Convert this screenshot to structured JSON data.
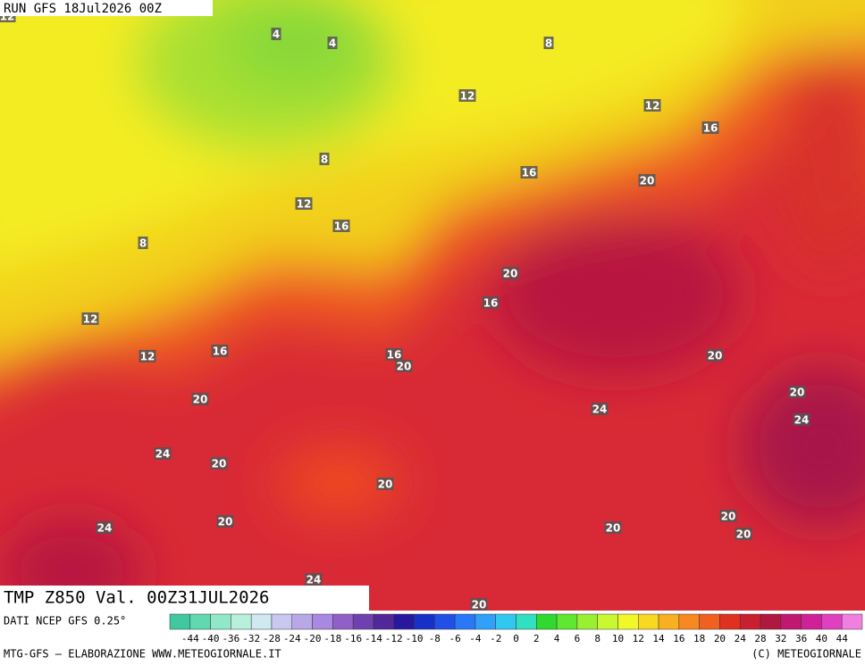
{
  "header": {
    "run": "RUN GFS 18Jul2026 00Z"
  },
  "map": {
    "field": "TMP Z850 Val. 00Z31JUL2026",
    "contour_labels": [
      12,
      4,
      4,
      8,
      12,
      12,
      16,
      8,
      16,
      20,
      12,
      16,
      8,
      20,
      16,
      12,
      16,
      12,
      16,
      20,
      20,
      20,
      20,
      24,
      24,
      24,
      20,
      20,
      20,
      24,
      20,
      20,
      20,
      24,
      20
    ]
  },
  "colorbar": {
    "labels": [
      -44,
      -40,
      -36,
      -32,
      -28,
      -24,
      -20,
      -18,
      -16,
      -14,
      -12,
      -10,
      -8,
      -6,
      -4,
      -2,
      0,
      2,
      4,
      6,
      8,
      10,
      12,
      14,
      16,
      18,
      20,
      24,
      28,
      32,
      36,
      40,
      44
    ],
    "colors": [
      "#40c8a0",
      "#60d8b0",
      "#90e8c8",
      "#b8f0dc",
      "#d0e8f0",
      "#c8c8f0",
      "#b8a8e8",
      "#a888e0",
      "#9060c8",
      "#7040b0",
      "#502898",
      "#2818a0",
      "#1830c8",
      "#2050e8",
      "#2878f8",
      "#30a0f8",
      "#30c8f0",
      "#30e0c0",
      "#30d830",
      "#60e830",
      "#98f030",
      "#c8f830",
      "#f0f828",
      "#f8d820",
      "#f8b020",
      "#f88820",
      "#f06020",
      "#e03020",
      "#c82030",
      "#b01840",
      "#c01870",
      "#d02098",
      "#e040c0",
      "#f080e0"
    ]
  },
  "footer": {
    "source": "DATI NCEP GFS 0.25°",
    "credit": "MTG-GFS — ELABORAZIONE WWW.METEOGIORNALE.IT",
    "copyright": "(C) METEOGIORNALE"
  }
}
